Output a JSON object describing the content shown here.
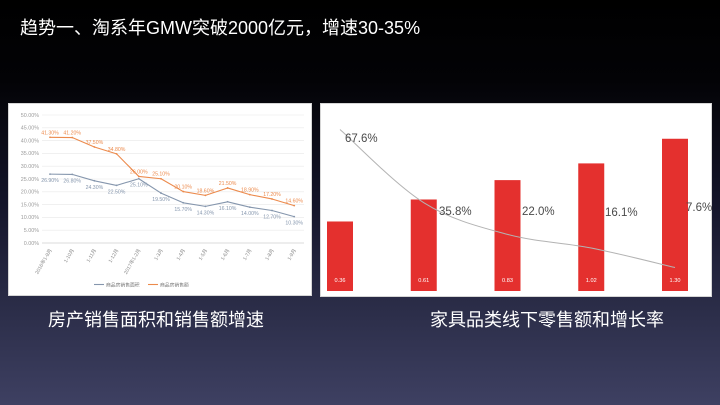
{
  "slide": {
    "title": "趋势一、淘系年GMW突破2000亿元，增速30-35%",
    "captions": [
      "房产销售面积和销售额增速",
      "家具品类线下零售额和增长率"
    ]
  },
  "chart_data": [
    {
      "type": "line",
      "categories": [
        "2016年1-9月",
        "1-10月",
        "1-11月",
        "1-12月",
        "2017年1-2月",
        "1-3月",
        "1-4月",
        "1-5月",
        "1-6月",
        "1-7月",
        "1-8月",
        "1-9月"
      ],
      "series": [
        {
          "name": "商品房销售面积",
          "color": "#8596ad",
          "values": [
            26.9,
            26.8,
            24.3,
            22.5,
            25.1,
            19.5,
            15.7,
            14.3,
            16.1,
            14.0,
            12.7,
            10.3
          ],
          "labels": [
            "26.90%",
            "26.80%",
            "24.30%",
            "22.50%",
            "25.10%",
            "19.50%",
            "15.70%",
            "14.30%",
            "16.10%",
            "14.00%",
            "12.70%",
            "10.30%"
          ]
        },
        {
          "name": "商品房销售额",
          "color": "#ec8a4c",
          "values": [
            41.3,
            41.2,
            37.5,
            34.8,
            26.0,
            25.1,
            20.1,
            18.6,
            21.5,
            18.9,
            17.2,
            14.6
          ],
          "labels": [
            "41.30%",
            "41.20%",
            "37.50%",
            "34.80%",
            "26.00%",
            "25.10%",
            "20.10%",
            "18.60%",
            "21.50%",
            "18.90%",
            "17.20%",
            "14.60%"
          ]
        }
      ],
      "ylim": [
        0,
        50
      ],
      "ytick_labels": [
        "0.00%",
        "5.00%",
        "10.00%",
        "15.00%",
        "20.00%",
        "25.00%",
        "30.00%",
        "35.00%",
        "40.00%",
        "45.00%",
        "50.00%"
      ],
      "grid": true,
      "legend": "bottom"
    },
    {
      "type": "bar",
      "series": [
        {
          "type": "bar",
          "color": "#e4302e",
          "values": [
            0.36,
            0.61,
            0.83,
            1.02,
            1.3
          ],
          "labels": [
            "0.36",
            "0.61",
            "0.83",
            "1.02",
            "1.30"
          ]
        },
        {
          "type": "line",
          "color": "#b3b3b3",
          "values": [
            67.6,
            35.8,
            22.0,
            16.1,
            7.6
          ],
          "labels": [
            "67.6%",
            "35.8%",
            "22.0%",
            "16.1%",
            "7.6%"
          ]
        }
      ],
      "grid": false,
      "legend": "none"
    }
  ]
}
